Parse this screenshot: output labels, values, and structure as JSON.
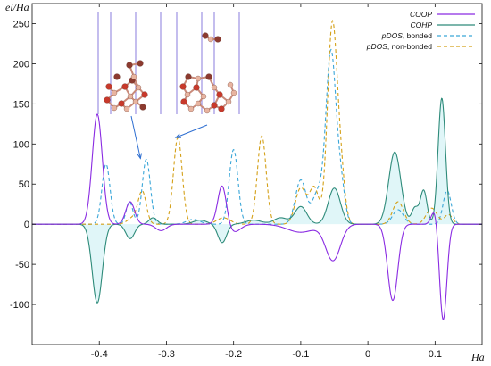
{
  "chart_data": {
    "type": "line",
    "xlabel": "Ha",
    "ylabel": "el/Ha",
    "xlim": [
      -0.5,
      0.17
    ],
    "ylim": [
      -150,
      275
    ],
    "x_ticks": [
      -0.4,
      -0.3,
      -0.2,
      -0.1,
      0,
      0.1
    ],
    "x_tick_labels": [
      "-0.4",
      "-0.3",
      "-0.2",
      "-0.1",
      "0",
      "0.1"
    ],
    "y_ticks": [
      -100,
      -50,
      0,
      50,
      100,
      150,
      200,
      250
    ],
    "y_tick_labels": [
      "-100",
      "-50",
      "0",
      "50",
      "100",
      "150",
      "200",
      "250"
    ],
    "grid": false,
    "legend_position": "top-right",
    "legend": [
      {
        "italic": "COOP",
        "plain": ""
      },
      {
        "italic": "COHP",
        "plain": ""
      },
      {
        "italic": "pDOS",
        "plain": ", bonded"
      },
      {
        "italic": "pDOS",
        "plain": ", non-bonded"
      }
    ],
    "colors": {
      "coop": "#8a2be2",
      "cohp": "#2e8b7a",
      "pdos_bonded": "#3aa6d8",
      "pdos_nonbonded": "#d4a017",
      "fill": "#e0f6f8"
    },
    "series": [
      {
        "key": "coop",
        "dash": "solid",
        "peaks": [
          [
            -0.403,
            137,
            0.0075
          ],
          [
            -0.354,
            28,
            0.0065
          ],
          [
            -0.308,
            -8,
            0.008
          ],
          [
            -0.217,
            50,
            0.0065
          ],
          [
            -0.2,
            -10,
            0.01
          ],
          [
            -0.1,
            -10,
            0.02
          ],
          [
            -0.052,
            -45,
            0.011
          ],
          [
            0.037,
            -95,
            0.0075
          ],
          [
            0.1,
            20,
            0.005
          ],
          [
            0.112,
            -120,
            0.0055
          ]
        ]
      },
      {
        "key": "cohp",
        "dash": "solid",
        "peaks": [
          [
            -0.403,
            -98,
            0.0075
          ],
          [
            -0.354,
            -18,
            0.0065
          ],
          [
            -0.32,
            8,
            0.006
          ],
          [
            -0.25,
            5,
            0.01
          ],
          [
            -0.217,
            -23,
            0.0065
          ],
          [
            -0.17,
            5,
            0.012
          ],
          [
            -0.13,
            8,
            0.01
          ],
          [
            -0.1,
            22,
            0.009
          ],
          [
            -0.05,
            45,
            0.009
          ],
          [
            0.04,
            90,
            0.009
          ],
          [
            0.07,
            20,
            0.005
          ],
          [
            0.083,
            42,
            0.005
          ],
          [
            0.11,
            157,
            0.0055
          ]
        ]
      },
      {
        "key": "pdos_bonded",
        "dash": "dashed",
        "peaks": [
          [
            -0.39,
            75,
            0.006
          ],
          [
            -0.355,
            28,
            0.005
          ],
          [
            -0.33,
            81,
            0.006
          ],
          [
            -0.26,
            6,
            0.01
          ],
          [
            -0.2,
            93,
            0.0065
          ],
          [
            -0.1,
            55,
            0.008
          ],
          [
            -0.075,
            38,
            0.008
          ],
          [
            -0.055,
            214,
            0.0075
          ],
          [
            -0.04,
            45,
            0.006
          ],
          [
            0.045,
            18,
            0.008
          ],
          [
            0.118,
            42,
            0.006
          ]
        ]
      },
      {
        "key": "pdos_nonbonded",
        "dash": "dashed",
        "peaks": [
          [
            -0.35,
            8,
            0.008
          ],
          [
            -0.336,
            40,
            0.006
          ],
          [
            -0.283,
            108,
            0.0065
          ],
          [
            -0.215,
            8,
            0.01
          ],
          [
            -0.158,
            110,
            0.0065
          ],
          [
            -0.1,
            45,
            0.008
          ],
          [
            -0.08,
            45,
            0.007
          ],
          [
            -0.053,
            248,
            0.0072
          ],
          [
            -0.04,
            55,
            0.006
          ],
          [
            0.045,
            28,
            0.008
          ],
          [
            0.095,
            20,
            0.008
          ],
          [
            0.12,
            12,
            0.006
          ]
        ]
      }
    ],
    "inset": {
      "description_icon": "molecular-structure-inset",
      "bond_positions": [
        -0.34,
        -0.29
      ]
    }
  }
}
